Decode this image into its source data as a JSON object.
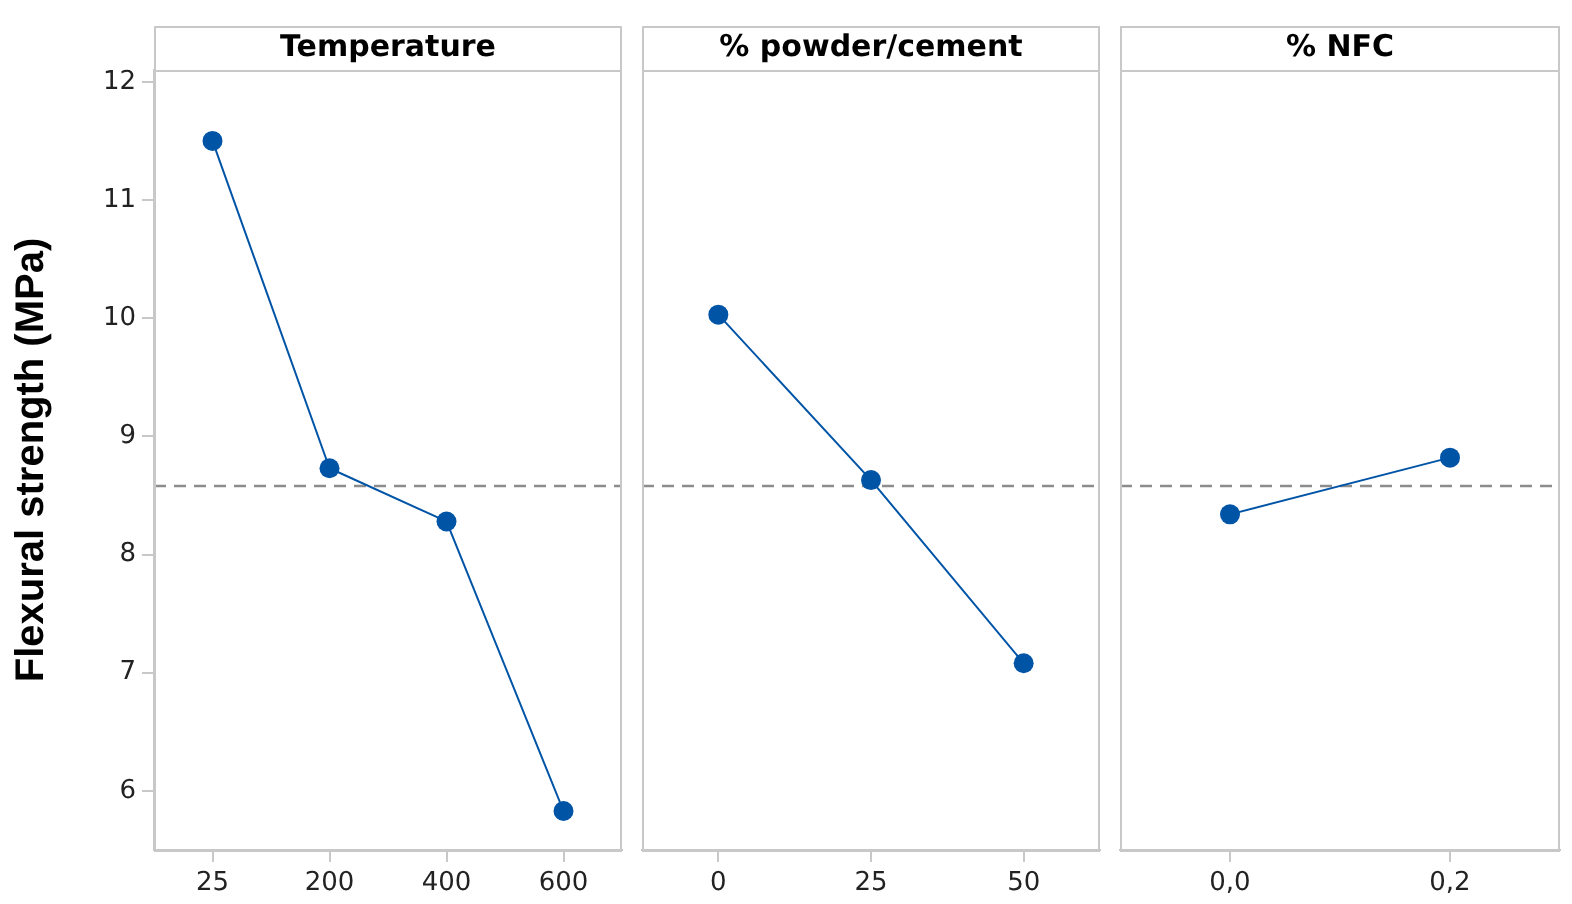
{
  "chart_data": [
    {
      "type": "line",
      "title": "Temperature",
      "ylabel": "Flexural strength (MPa)",
      "categories": [
        "25",
        "200",
        "400",
        "600"
      ],
      "values": [
        11.5,
        8.73,
        8.28,
        5.83
      ],
      "color": "#0054a6",
      "marker": "circle",
      "ylim": [
        5.5,
        12.1
      ],
      "yticks": [
        6,
        7,
        8,
        9,
        10,
        11,
        12
      ],
      "ref_lines": [
        {
          "axis": "y",
          "value": 8.58,
          "color": "#8c8c8c",
          "line_style": "dashed"
        }
      ]
    },
    {
      "type": "line",
      "title": "% powder/cement",
      "categories": [
        "0",
        "25",
        "50"
      ],
      "values": [
        10.03,
        8.63,
        7.08
      ],
      "color": "#0054a6",
      "marker": "circle",
      "ylim": [
        5.5,
        12.1
      ],
      "yticks": [
        6,
        7,
        8,
        9,
        10,
        11,
        12
      ],
      "tick_labels": "x",
      "ref_lines": [
        {
          "axis": "y",
          "value": 8.58,
          "color": "#8c8c8c",
          "line_style": "dashed"
        }
      ]
    },
    {
      "type": "line",
      "title": "% NFC",
      "categories": [
        "0,0",
        "0,2"
      ],
      "values": [
        8.34,
        8.82
      ],
      "color": "#0054a6",
      "marker": "circle",
      "ylim": [
        5.5,
        12.1
      ],
      "yticks": [
        6,
        7,
        8,
        9,
        10,
        11,
        12
      ],
      "tick_labels": "x",
      "ref_lines": [
        {
          "axis": "y",
          "value": 8.58,
          "color": "#8c8c8c",
          "line_style": "dashed"
        }
      ]
    }
  ]
}
